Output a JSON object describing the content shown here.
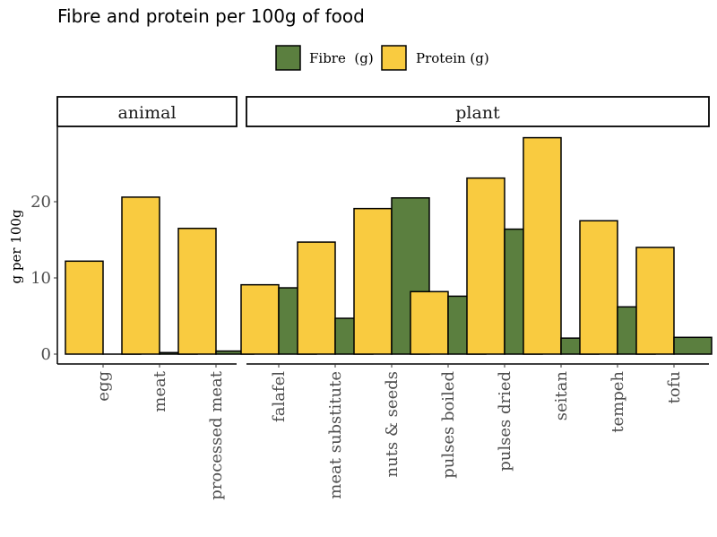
{
  "chart_data": {
    "type": "bar",
    "title": "Fibre and protein per 100g of food",
    "ylabel": "g per 100g",
    "xlabel": "",
    "ylim": [
      -1.4,
      29.8
    ],
    "yticks": [
      0,
      10,
      20
    ],
    "grid": false,
    "legend_position": "top",
    "colors": {
      "Fibre  (g)": "#5B7F3F",
      "Protein (g)": "#F9CB40"
    },
    "facets": [
      {
        "label": "animal",
        "categories": [
          "egg",
          "meat",
          "processed meat"
        ],
        "series": [
          {
            "name": "Protein (g)",
            "values": [
              12.2,
              20.6,
              16.5
            ]
          },
          {
            "name": "Fibre  (g)",
            "values": [
              0.0,
              0.2,
              0.4
            ]
          }
        ]
      },
      {
        "label": "plant",
        "categories": [
          "falafel",
          "meat substitute",
          "nuts & seeds",
          "pulses boiled",
          "pulses dried",
          "seitan",
          "tempeh",
          "tofu"
        ],
        "series": [
          {
            "name": "Protein (g)",
            "values": [
              9.1,
              14.7,
              19.1,
              8.2,
              23.1,
              28.4,
              17.5,
              14.0
            ]
          },
          {
            "name": "Fibre  (g)",
            "values": [
              8.7,
              4.7,
              20.5,
              7.6,
              16.4,
              2.1,
              6.2,
              2.2
            ]
          }
        ]
      }
    ],
    "legend": [
      "Fibre  (g)",
      "Protein (g)"
    ]
  }
}
